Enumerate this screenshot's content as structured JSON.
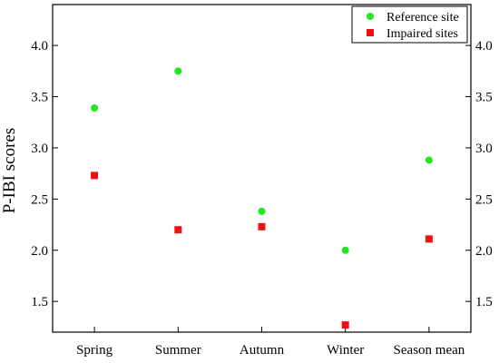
{
  "chart_data": {
    "type": "scatter",
    "title": "",
    "xlabel": "",
    "ylabel": "P-IBI scores",
    "categories": [
      "Spring",
      "Summer",
      "Autumn",
      "Winter",
      "Season mean"
    ],
    "ylim": [
      1.2,
      4.4
    ],
    "yticks": [
      "1.5",
      "2.0",
      "2.5",
      "3.0",
      "3.5",
      "4.0"
    ],
    "mirror_right_axis": true,
    "grid": false,
    "legend_position": "top-right",
    "series": [
      {
        "name": "Reference site",
        "marker": "circle",
        "color": "#1ee81e",
        "values": [
          3.39,
          3.75,
          2.38,
          2.0,
          2.88
        ]
      },
      {
        "name": "Impaired sites",
        "marker": "square",
        "color": "#ee1111",
        "values": [
          2.73,
          2.2,
          2.23,
          1.27,
          2.11
        ]
      }
    ]
  }
}
